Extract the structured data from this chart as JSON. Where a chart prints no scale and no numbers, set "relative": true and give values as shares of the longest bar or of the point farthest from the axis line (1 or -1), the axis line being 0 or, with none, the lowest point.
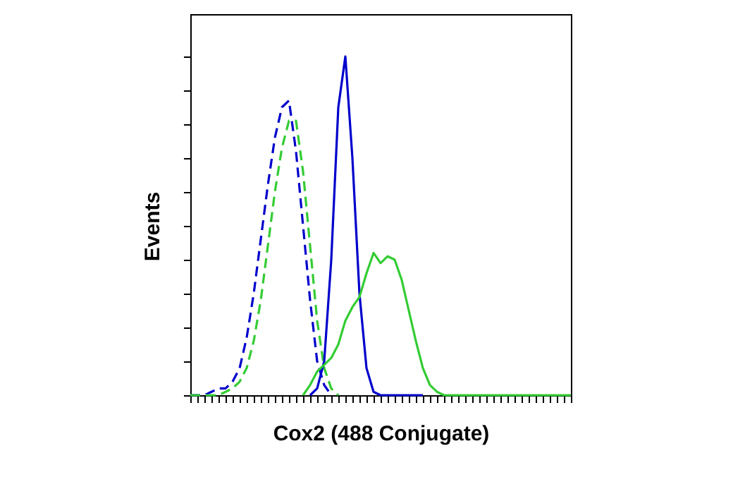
{
  "chart_data": {
    "type": "line",
    "relative": true,
    "xlabel": "Cox2 (488 Conjugate)",
    "ylabel": "Events",
    "tick_labels": false,
    "grid": false,
    "legend": false,
    "marker": "none",
    "categories": [
      null,
      null,
      null,
      null,
      null,
      null,
      null,
      null,
      null,
      null,
      null,
      null,
      null,
      null,
      null,
      null,
      null,
      null,
      null,
      null,
      null,
      null,
      null,
      null,
      null,
      null,
      null,
      null,
      null,
      null,
      null,
      null,
      null,
      null,
      null,
      null,
      null,
      null,
      null,
      null,
      null,
      null,
      null,
      null,
      null,
      null,
      null,
      null,
      null,
      null,
      null,
      null,
      null,
      null,
      null
    ],
    "series": [
      {
        "color": "#0000cc",
        "line_style": "dashed",
        "values": [
          0,
          0,
          0,
          0.01,
          0.02,
          0.02,
          0.04,
          0.08,
          0.17,
          0.3,
          0.46,
          0.62,
          0.76,
          0.85,
          0.87,
          0.72,
          0.5,
          0.28,
          0.1,
          0.03,
          0,
          null,
          null,
          null,
          null,
          null,
          null,
          null,
          null,
          null,
          null,
          null,
          null,
          null,
          null,
          null,
          null,
          null,
          null,
          null,
          null,
          null,
          null,
          null,
          null,
          null,
          null,
          null,
          null,
          null,
          null,
          null,
          null,
          null,
          null
        ]
      },
      {
        "color": "#33cc33",
        "line_style": "dashed",
        "values": [
          0,
          0,
          0,
          0,
          0,
          0.01,
          0.02,
          0.04,
          0.08,
          0.16,
          0.28,
          0.44,
          0.6,
          0.73,
          0.81,
          0.81,
          0.66,
          0.44,
          0.22,
          0.08,
          0.02,
          0,
          null,
          null,
          null,
          null,
          null,
          null,
          null,
          null,
          null,
          null,
          null,
          null,
          null,
          null,
          null,
          null,
          null,
          null,
          null,
          null,
          null,
          null,
          null,
          null,
          null,
          null,
          null,
          null,
          null,
          null,
          null,
          null,
          null
        ]
      },
      {
        "color": "#0000cc",
        "line_style": "solid",
        "values": [
          null,
          null,
          null,
          null,
          null,
          null,
          null,
          null,
          null,
          null,
          null,
          null,
          null,
          null,
          null,
          null,
          null,
          0,
          0.02,
          0.1,
          0.4,
          0.85,
          1,
          0.7,
          0.3,
          0.08,
          0.01,
          0,
          0,
          0,
          0,
          0,
          0,
          0,
          null,
          null,
          null,
          null,
          null,
          null,
          null,
          null,
          null,
          null,
          null,
          null,
          null,
          null,
          null,
          null,
          null,
          null,
          null,
          null,
          null
        ]
      },
      {
        "color": "#33cc33",
        "line_style": "solid",
        "values": [
          null,
          null,
          null,
          null,
          null,
          null,
          null,
          null,
          null,
          null,
          null,
          null,
          null,
          null,
          null,
          null,
          0,
          0.03,
          0.07,
          0.09,
          0.11,
          0.15,
          0.22,
          0.26,
          0.29,
          0.36,
          0.42,
          0.39,
          0.41,
          0.4,
          0.34,
          0.25,
          0.16,
          0.08,
          0.03,
          0.01,
          0,
          0,
          0,
          0,
          0,
          0,
          0,
          0,
          0,
          0,
          0,
          0,
          0,
          0,
          0,
          0,
          0,
          0,
          0
        ]
      }
    ]
  }
}
